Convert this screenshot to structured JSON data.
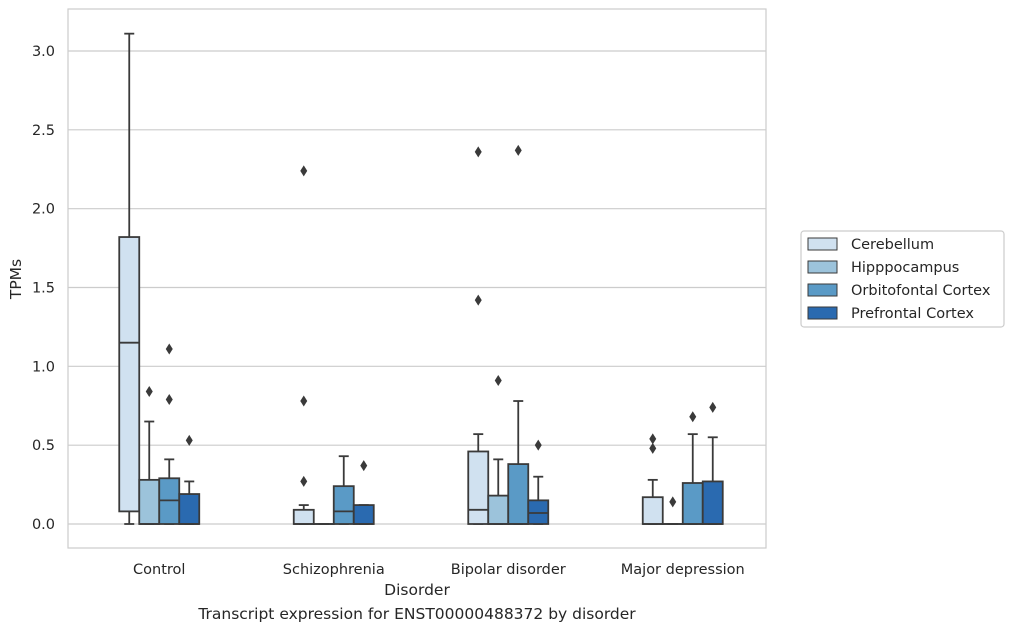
{
  "caption": "Transcript expression for ENST00000488372 by disorder",
  "chart_data": {
    "type": "box",
    "xlabel": "Disorder",
    "ylabel": "TPMs",
    "ylim": [
      -0.15,
      3.25
    ],
    "y_ticks": [
      "0.0",
      "0.5",
      "1.0",
      "1.5",
      "2.0",
      "2.5",
      "3.0"
    ],
    "grid": "horizontal",
    "legend_position": "right",
    "categories": [
      "Control",
      "Schizophrenia",
      "Bipolar disorder",
      "Major depression"
    ],
    "series": [
      {
        "name": "Cerebellum",
        "color": "#d0e1f0",
        "boxes": [
          {
            "category": "Control",
            "whisker_low": 0.0,
            "q1": 0.08,
            "median": 1.15,
            "q3": 1.82,
            "whisker_high": 3.11,
            "outliers": []
          },
          {
            "category": "Schizophrenia",
            "whisker_low": 0.0,
            "q1": 0.0,
            "median": 0.0,
            "q3": 0.09,
            "whisker_high": 0.12,
            "outliers": [
              2.24,
              0.78,
              0.27
            ]
          },
          {
            "category": "Bipolar disorder",
            "whisker_low": 0.0,
            "q1": 0.0,
            "median": 0.09,
            "q3": 0.46,
            "whisker_high": 0.57,
            "outliers": [
              2.36,
              1.42
            ]
          },
          {
            "category": "Major depression",
            "whisker_low": 0.0,
            "q1": 0.0,
            "median": 0.0,
            "q3": 0.17,
            "whisker_high": 0.28,
            "outliers": [
              0.54,
              0.48
            ]
          }
        ]
      },
      {
        "name": "Hipppocampus",
        "color": "#9cc3db",
        "boxes": [
          {
            "category": "Control",
            "whisker_low": 0.0,
            "q1": 0.0,
            "median": 0.0,
            "q3": 0.28,
            "whisker_high": 0.65,
            "outliers": [
              0.84
            ]
          },
          {
            "category": "Schizophrenia",
            "whisker_low": 0.0,
            "q1": 0.0,
            "median": 0.0,
            "q3": 0.0,
            "whisker_high": 0.0,
            "outliers": []
          },
          {
            "category": "Bipolar disorder",
            "whisker_low": 0.0,
            "q1": 0.0,
            "median": 0.0,
            "q3": 0.18,
            "whisker_high": 0.41,
            "outliers": [
              0.91
            ]
          },
          {
            "category": "Major depression",
            "whisker_low": 0.0,
            "q1": 0.0,
            "median": 0.0,
            "q3": 0.0,
            "whisker_high": 0.0,
            "outliers": [
              0.14
            ]
          }
        ]
      },
      {
        "name": "Orbitofontal Cortex",
        "color": "#5a9ac6",
        "boxes": [
          {
            "category": "Control",
            "whisker_low": 0.0,
            "q1": 0.0,
            "median": 0.15,
            "q3": 0.29,
            "whisker_high": 0.41,
            "outliers": [
              1.11,
              0.79
            ]
          },
          {
            "category": "Schizophrenia",
            "whisker_low": 0.0,
            "q1": 0.0,
            "median": 0.08,
            "q3": 0.24,
            "whisker_high": 0.43,
            "outliers": []
          },
          {
            "category": "Bipolar disorder",
            "whisker_low": 0.0,
            "q1": 0.0,
            "median": 0.0,
            "q3": 0.38,
            "whisker_high": 0.78,
            "outliers": [
              2.37
            ]
          },
          {
            "category": "Major depression",
            "whisker_low": 0.0,
            "q1": 0.0,
            "median": 0.0,
            "q3": 0.26,
            "whisker_high": 0.57,
            "outliers": [
              0.68
            ]
          }
        ]
      },
      {
        "name": "Prefrontal Cortex",
        "color": "#2a6ab0",
        "boxes": [
          {
            "category": "Control",
            "whisker_low": 0.0,
            "q1": 0.0,
            "median": 0.0,
            "q3": 0.19,
            "whisker_high": 0.27,
            "outliers": [
              0.53
            ]
          },
          {
            "category": "Schizophrenia",
            "whisker_low": 0.0,
            "q1": 0.0,
            "median": 0.0,
            "q3": 0.12,
            "whisker_high": 0.12,
            "outliers": [
              0.37
            ]
          },
          {
            "category": "Bipolar disorder",
            "whisker_low": 0.0,
            "q1": 0.0,
            "median": 0.07,
            "q3": 0.15,
            "whisker_high": 0.3,
            "outliers": [
              0.5
            ]
          },
          {
            "category": "Major depression",
            "whisker_low": 0.0,
            "q1": 0.0,
            "median": 0.0,
            "q3": 0.27,
            "whisker_high": 0.55,
            "outliers": [
              0.74
            ]
          }
        ]
      }
    ]
  }
}
